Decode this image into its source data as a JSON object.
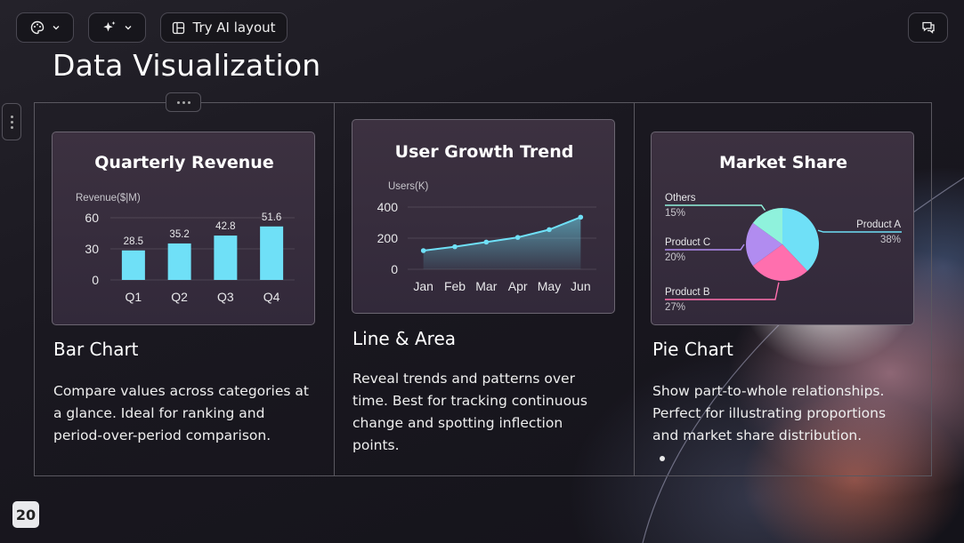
{
  "toolbar": {
    "palette_icon": "palette-icon",
    "sparkle_icon": "sparkle-icon",
    "layout_icon": "layout-icon",
    "try_ai_label": "Try AI layout",
    "comment_icon": "comment-icon"
  },
  "slide": {
    "title": "Data Visualization",
    "page_number": "20"
  },
  "columns": [
    {
      "title": "Bar Chart",
      "description": "Compare values across categories at a glance. Ideal for ranking and period-over-period comparison."
    },
    {
      "title": "Line & Area",
      "description": "Reveal trends and patterns over time. Best for tracking continuous change and spotting inflection points."
    },
    {
      "title": "Pie Chart",
      "description": "Show part-to-whole relationships. Perfect for illustrating proportions and market share distribution."
    }
  ],
  "colors": {
    "accent_cyan": "#6fe0f7",
    "pie_pink": "#ff6fae",
    "pie_purple": "#b18cf0",
    "pie_mint": "#8ff2dc"
  },
  "chart_data": [
    {
      "type": "bar",
      "title": "Quarterly Revenue",
      "ylabel": "Revenue($|M)",
      "categories": [
        "Q1",
        "Q2",
        "Q3",
        "Q4"
      ],
      "values": [
        28.5,
        35.2,
        42.8,
        51.6
      ],
      "data_labels": [
        "28.5",
        "35.2",
        "42.8",
        "51.6"
      ],
      "yticks": [
        "0",
        "30",
        "60"
      ],
      "ylim": [
        0,
        60
      ],
      "grid": true
    },
    {
      "type": "area",
      "title": "User Growth Trend",
      "ylabel": "Users(K)",
      "categories": [
        "Jan",
        "Feb",
        "Mar",
        "Apr",
        "May",
        "Jun"
      ],
      "values": [
        120,
        145,
        175,
        205,
        255,
        335
      ],
      "yticks": [
        "0",
        "200",
        "400"
      ],
      "ylim": [
        0,
        400
      ],
      "grid": true
    },
    {
      "type": "pie",
      "title": "Market Share",
      "slices": [
        {
          "label": "Product A",
          "value": 38,
          "value_label": "38%",
          "color": "#6fe0f7"
        },
        {
          "label": "Product B",
          "value": 27,
          "value_label": "27%",
          "color": "#ff6fae"
        },
        {
          "label": "Product C",
          "value": 20,
          "value_label": "20%",
          "color": "#b18cf0"
        },
        {
          "label": "Others",
          "value": 15,
          "value_label": "15%",
          "color": "#8ff2dc"
        }
      ]
    }
  ]
}
